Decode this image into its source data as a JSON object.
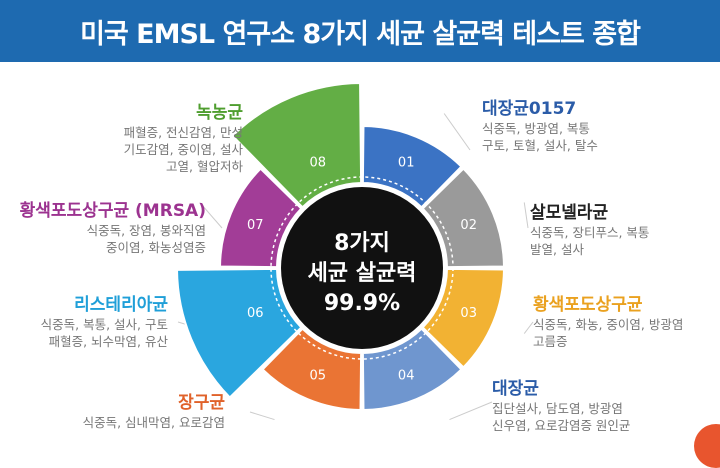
{
  "title": "미국 EMSL 연구소 8가지 세균 살균력 테스트 종합",
  "center": {
    "line1": "8가지",
    "line2": "세균 살균력",
    "line3": "99.9%"
  },
  "colors": {
    "header": "#1e6ab0",
    "center": "#111111",
    "blue": "#3b73c4",
    "gray": "#9a9a9a",
    "yellow": "#f2b233",
    "lightblue": "#6f96cf",
    "orange": "#ea7434",
    "cyan": "#2aa6df",
    "purple": "#a23d97",
    "green": "#63ae45",
    "corner": "#e8552e"
  },
  "segments": [
    {
      "num": "01",
      "color": "#3b73c4"
    },
    {
      "num": "02",
      "color": "#9a9a9a"
    },
    {
      "num": "03",
      "color": "#f2b233"
    },
    {
      "num": "04",
      "color": "#6f96cf"
    },
    {
      "num": "05",
      "color": "#ea7434"
    },
    {
      "num": "06",
      "color": "#2aa6df"
    },
    {
      "num": "07",
      "color": "#a23d97"
    },
    {
      "num": "08",
      "color": "#63ae45"
    }
  ],
  "bacteria": [
    {
      "name": "대장균0157",
      "color": "#2b5ca8",
      "lines": [
        "식중독, 방광염, 복통",
        "구토, 토혈, 설사, 탈수"
      ]
    },
    {
      "name": "살모넬라균",
      "color": "#222222",
      "lines": [
        "식중독, 장티푸스, 복통",
        "발열, 설사"
      ]
    },
    {
      "name": "황색포도상구균",
      "color": "#eaa11f",
      "lines": [
        "식중독, 화농, 중이염, 방광염",
        "고름증"
      ]
    },
    {
      "name": "대장균",
      "color": "#2b5ca8",
      "lines": [
        "집단설사, 담도염, 방광염",
        "신우염, 요로감염증 원인균"
      ]
    },
    {
      "name": "장구균",
      "color": "#e0622a",
      "lines": [
        "식중독, 심내막염, 요로감염"
      ]
    },
    {
      "name": "리스테리아균",
      "color": "#1f9fd8",
      "lines": [
        "식중독, 복통, 설사, 구토",
        "패혈증, 뇌수막염, 유산"
      ]
    },
    {
      "name": "황색포도상구균 (MRSA)",
      "color": "#9c3390",
      "lines": [
        "식중독, 장염, 봉와직염",
        "중이염, 화농성염증"
      ]
    },
    {
      "name": "녹농균",
      "color": "#4f9e2f",
      "lines": [
        "패혈증, 전신감염, 만성",
        "기도감염, 중이염, 설사",
        "고열, 혈압저하"
      ]
    }
  ]
}
